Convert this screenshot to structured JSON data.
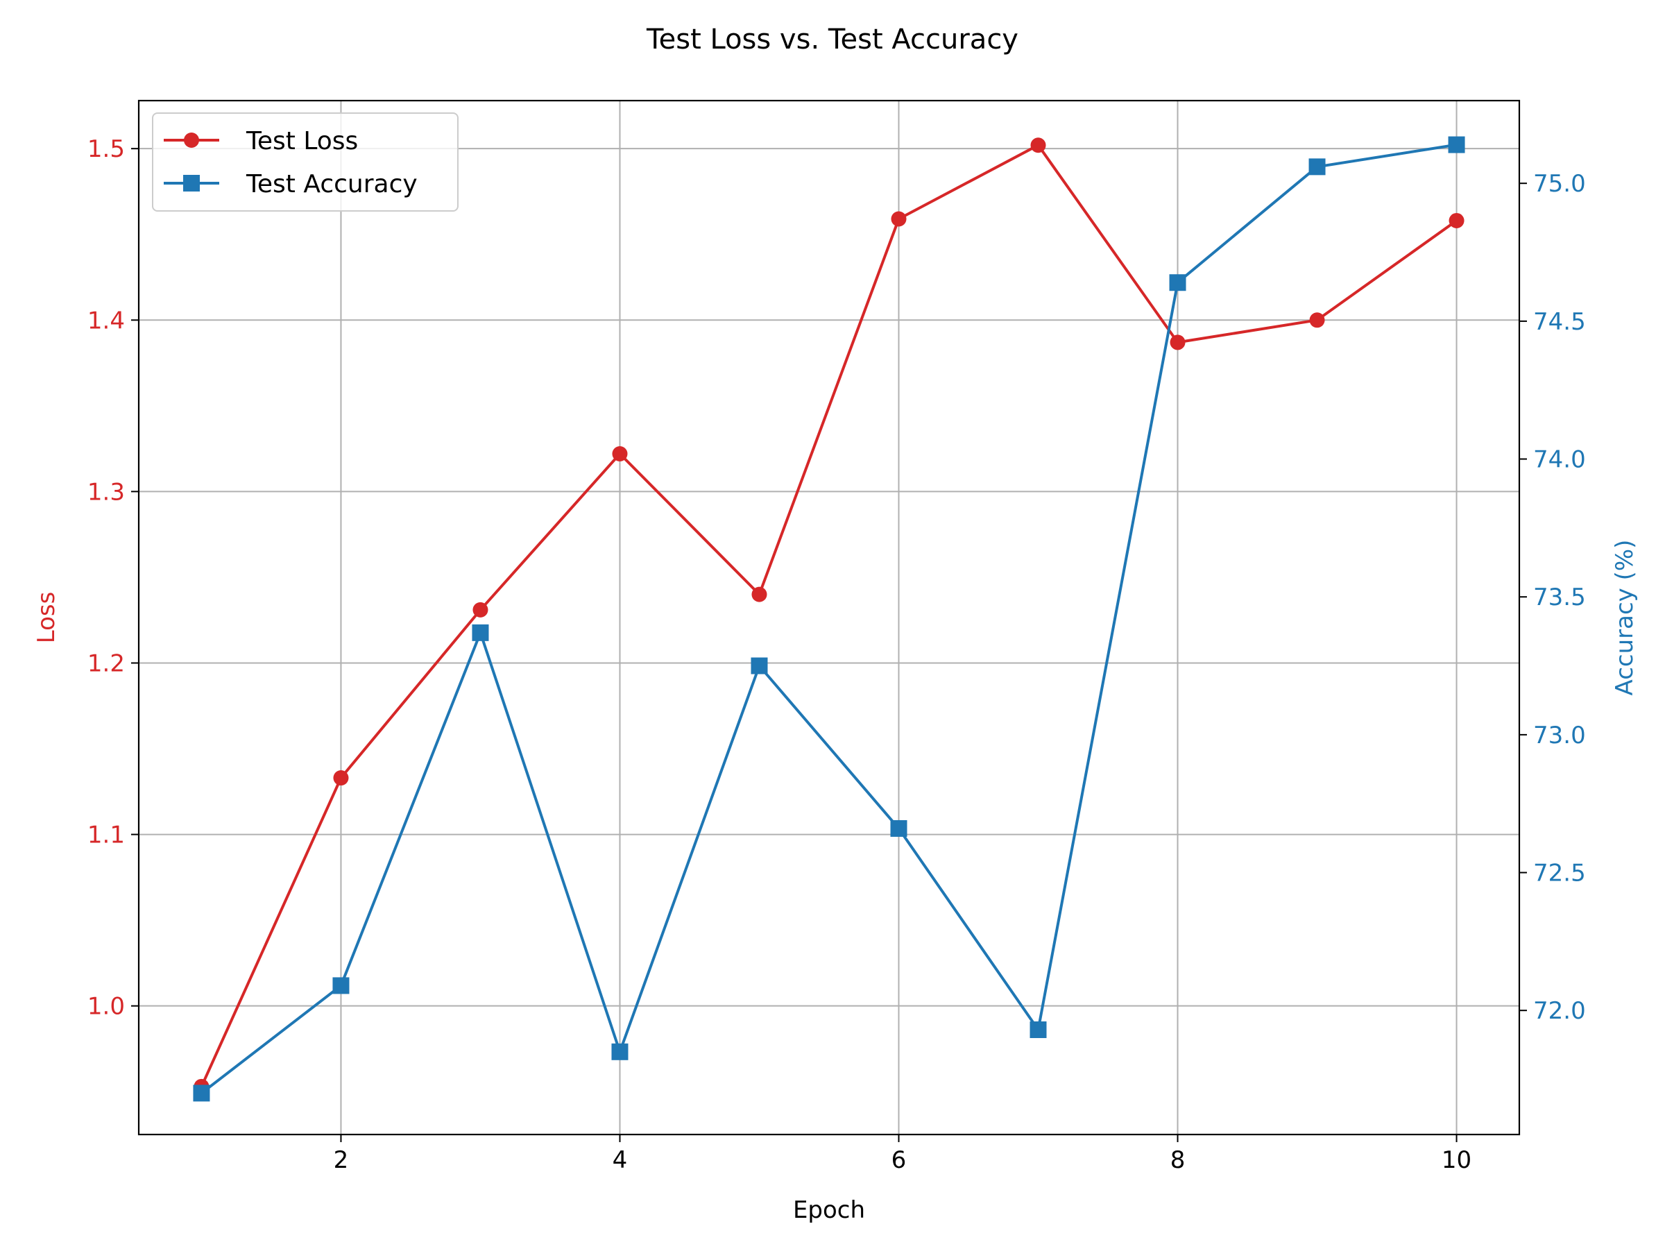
{
  "chart_data": {
    "type": "line",
    "title": "Test Loss vs. Test Accuracy",
    "xlabel": "Epoch",
    "x": [
      1,
      2,
      3,
      4,
      5,
      6,
      7,
      8,
      9,
      10
    ],
    "xlim": [
      0.55,
      10.45
    ],
    "xticks": [
      2,
      4,
      6,
      8,
      10
    ],
    "grid": true,
    "legend_position": "upper-left",
    "y_left": {
      "label": "Loss",
      "color": "#d62728",
      "lim": [
        0.925,
        1.528
      ],
      "ticks": [
        1.0,
        1.1,
        1.2,
        1.3,
        1.4,
        1.5
      ],
      "tick_labels": [
        "1.0",
        "1.1",
        "1.2",
        "1.3",
        "1.4",
        "1.5"
      ]
    },
    "y_right": {
      "label": "Accuracy (%)",
      "color": "#1f77b4",
      "lim": [
        71.55,
        75.3
      ],
      "ticks": [
        72.0,
        72.5,
        73.0,
        73.5,
        74.0,
        74.5,
        75.0
      ],
      "tick_labels": [
        "72.0",
        "72.5",
        "73.0",
        "73.5",
        "74.0",
        "74.5",
        "75.0"
      ]
    },
    "series": [
      {
        "name": "Test Loss",
        "axis": "left",
        "color": "#d62728",
        "marker": "circle",
        "values": [
          0.953,
          1.133,
          1.231,
          1.322,
          1.24,
          1.459,
          1.502,
          1.387,
          1.4,
          1.458
        ]
      },
      {
        "name": "Test Accuracy",
        "axis": "right",
        "color": "#1f77b4",
        "marker": "square",
        "values": [
          71.7,
          72.09,
          73.37,
          71.85,
          73.25,
          72.66,
          71.93,
          74.64,
          75.06,
          75.14
        ]
      }
    ]
  }
}
